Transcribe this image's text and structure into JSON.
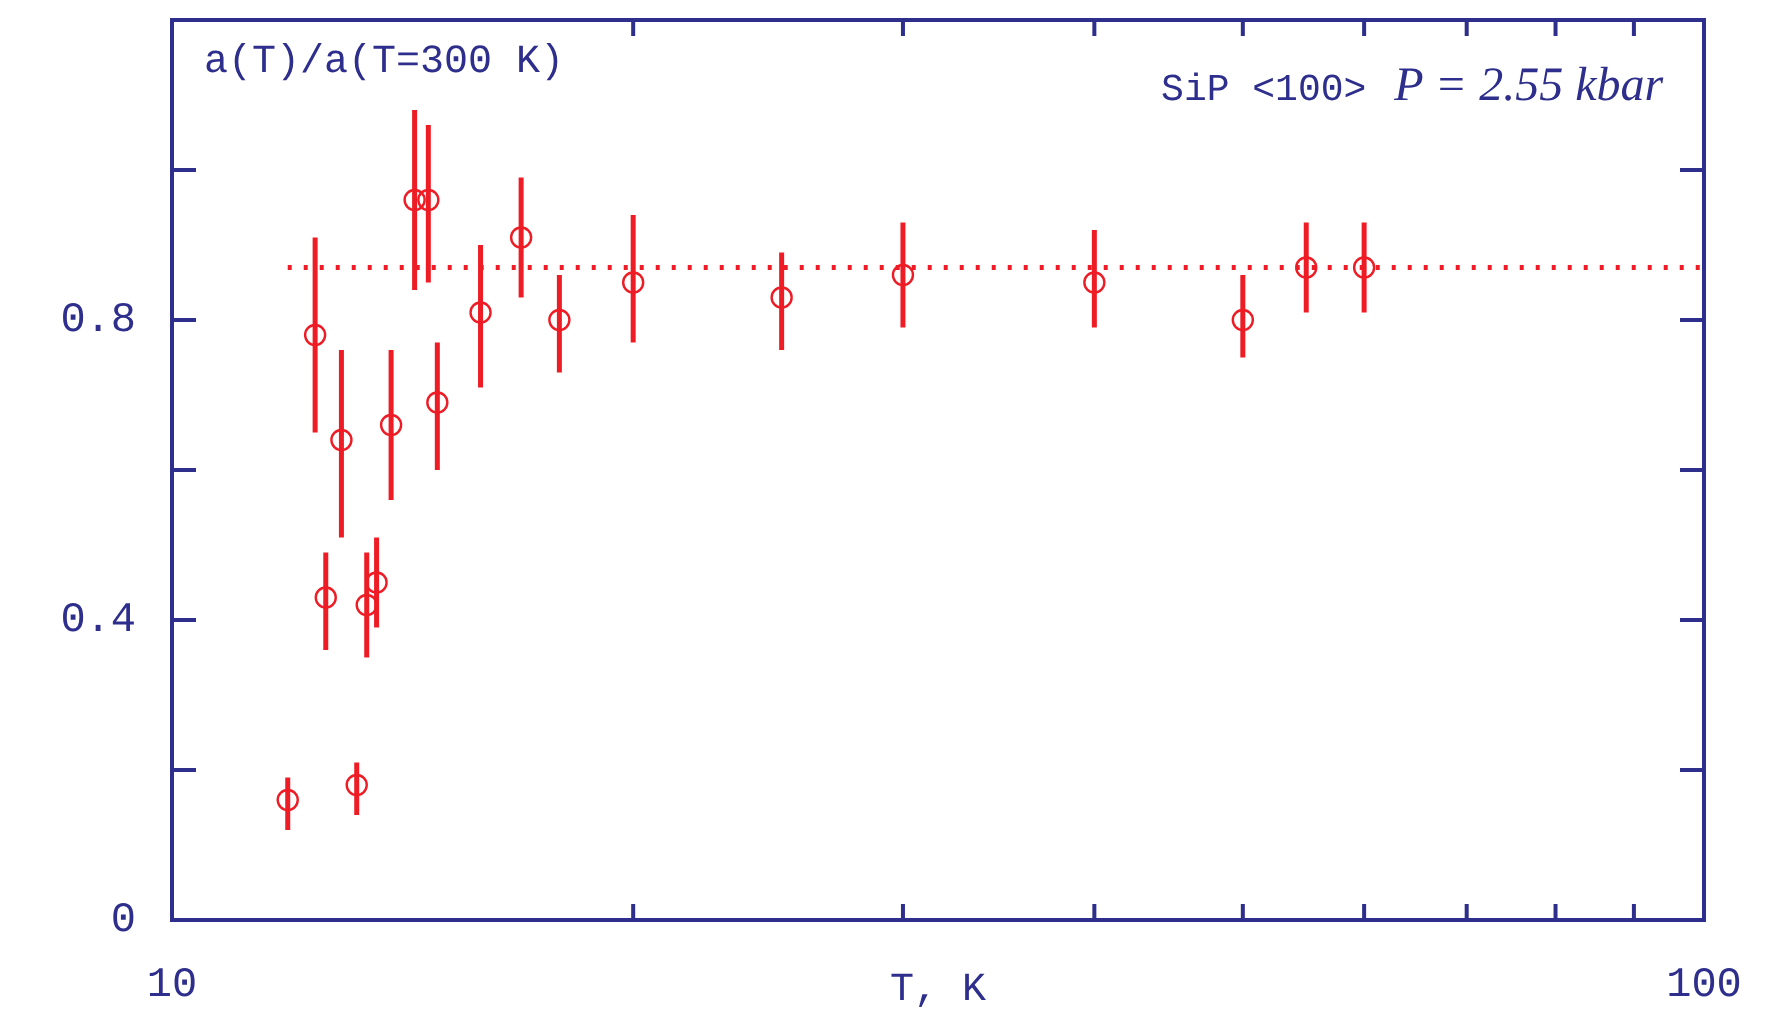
{
  "chart_data": {
    "type": "scatter",
    "ylabel": "a(T)/a(T=300 K)",
    "xlabel": "T, K",
    "annotations": [
      "SiP <100>",
      "P = 2.55 kbar"
    ],
    "log": "x",
    "xlim": [
      10,
      100
    ],
    "xticks": [
      10,
      {
        "value": 20,
        "label": null
      },
      {
        "value": 30,
        "label": null
      },
      {
        "value": 40,
        "label": null
      },
      {
        "value": 50,
        "label": null
      },
      {
        "value": 60,
        "label": null
      },
      {
        "value": 70,
        "label": null
      },
      {
        "value": 80,
        "label": null
      },
      {
        "value": 90,
        "label": null
      },
      100
    ],
    "ylim": [
      0,
      1.2
    ],
    "yticks": [
      0,
      {
        "value": 0.2,
        "label": null
      },
      0.4,
      {
        "value": 0.6,
        "label": null
      },
      0.8,
      {
        "value": 1.0,
        "label": null
      }
    ],
    "grid": false,
    "legend": false,
    "marker": "circle",
    "series": [
      {
        "color": "#ee1c25",
        "x": [
          11.9,
          12.4,
          12.6,
          12.9,
          13.2,
          13.4,
          13.6,
          13.9,
          14.4,
          14.7,
          14.9,
          15.9,
          16.9,
          17.9,
          20,
          25,
          30,
          40,
          50,
          55,
          60
        ],
        "values": [
          0.16,
          0.78,
          0.43,
          0.64,
          0.18,
          0.42,
          0.45,
          0.66,
          0.96,
          0.96,
          0.69,
          0.81,
          0.91,
          0.8,
          0.85,
          0.83,
          0.86,
          0.85,
          0.8,
          0.87,
          0.87
        ],
        "errors": [
          [
            0.12,
            0.19
          ],
          [
            0.65,
            0.91
          ],
          [
            0.36,
            0.49
          ],
          [
            0.51,
            0.76
          ],
          [
            0.14,
            0.21
          ],
          [
            0.35,
            0.49
          ],
          [
            0.39,
            0.51
          ],
          [
            0.56,
            0.76
          ],
          [
            0.84,
            1.08
          ],
          [
            0.85,
            1.06
          ],
          [
            0.6,
            0.77
          ],
          [
            0.71,
            0.9
          ],
          [
            0.83,
            0.99
          ],
          [
            0.73,
            0.86
          ],
          [
            0.77,
            0.94
          ],
          [
            0.76,
            0.89
          ],
          [
            0.79,
            0.93
          ],
          [
            0.79,
            0.92
          ],
          [
            0.75,
            0.86
          ],
          [
            0.81,
            0.93
          ],
          [
            0.81,
            0.93
          ]
        ]
      },
      {
        "type": "line",
        "color": "#ee1c25",
        "line_style": "dotted",
        "marker": "none",
        "x": [
          11.9,
          100
        ],
        "values": [
          0.87,
          0.87
        ]
      }
    ]
  }
}
